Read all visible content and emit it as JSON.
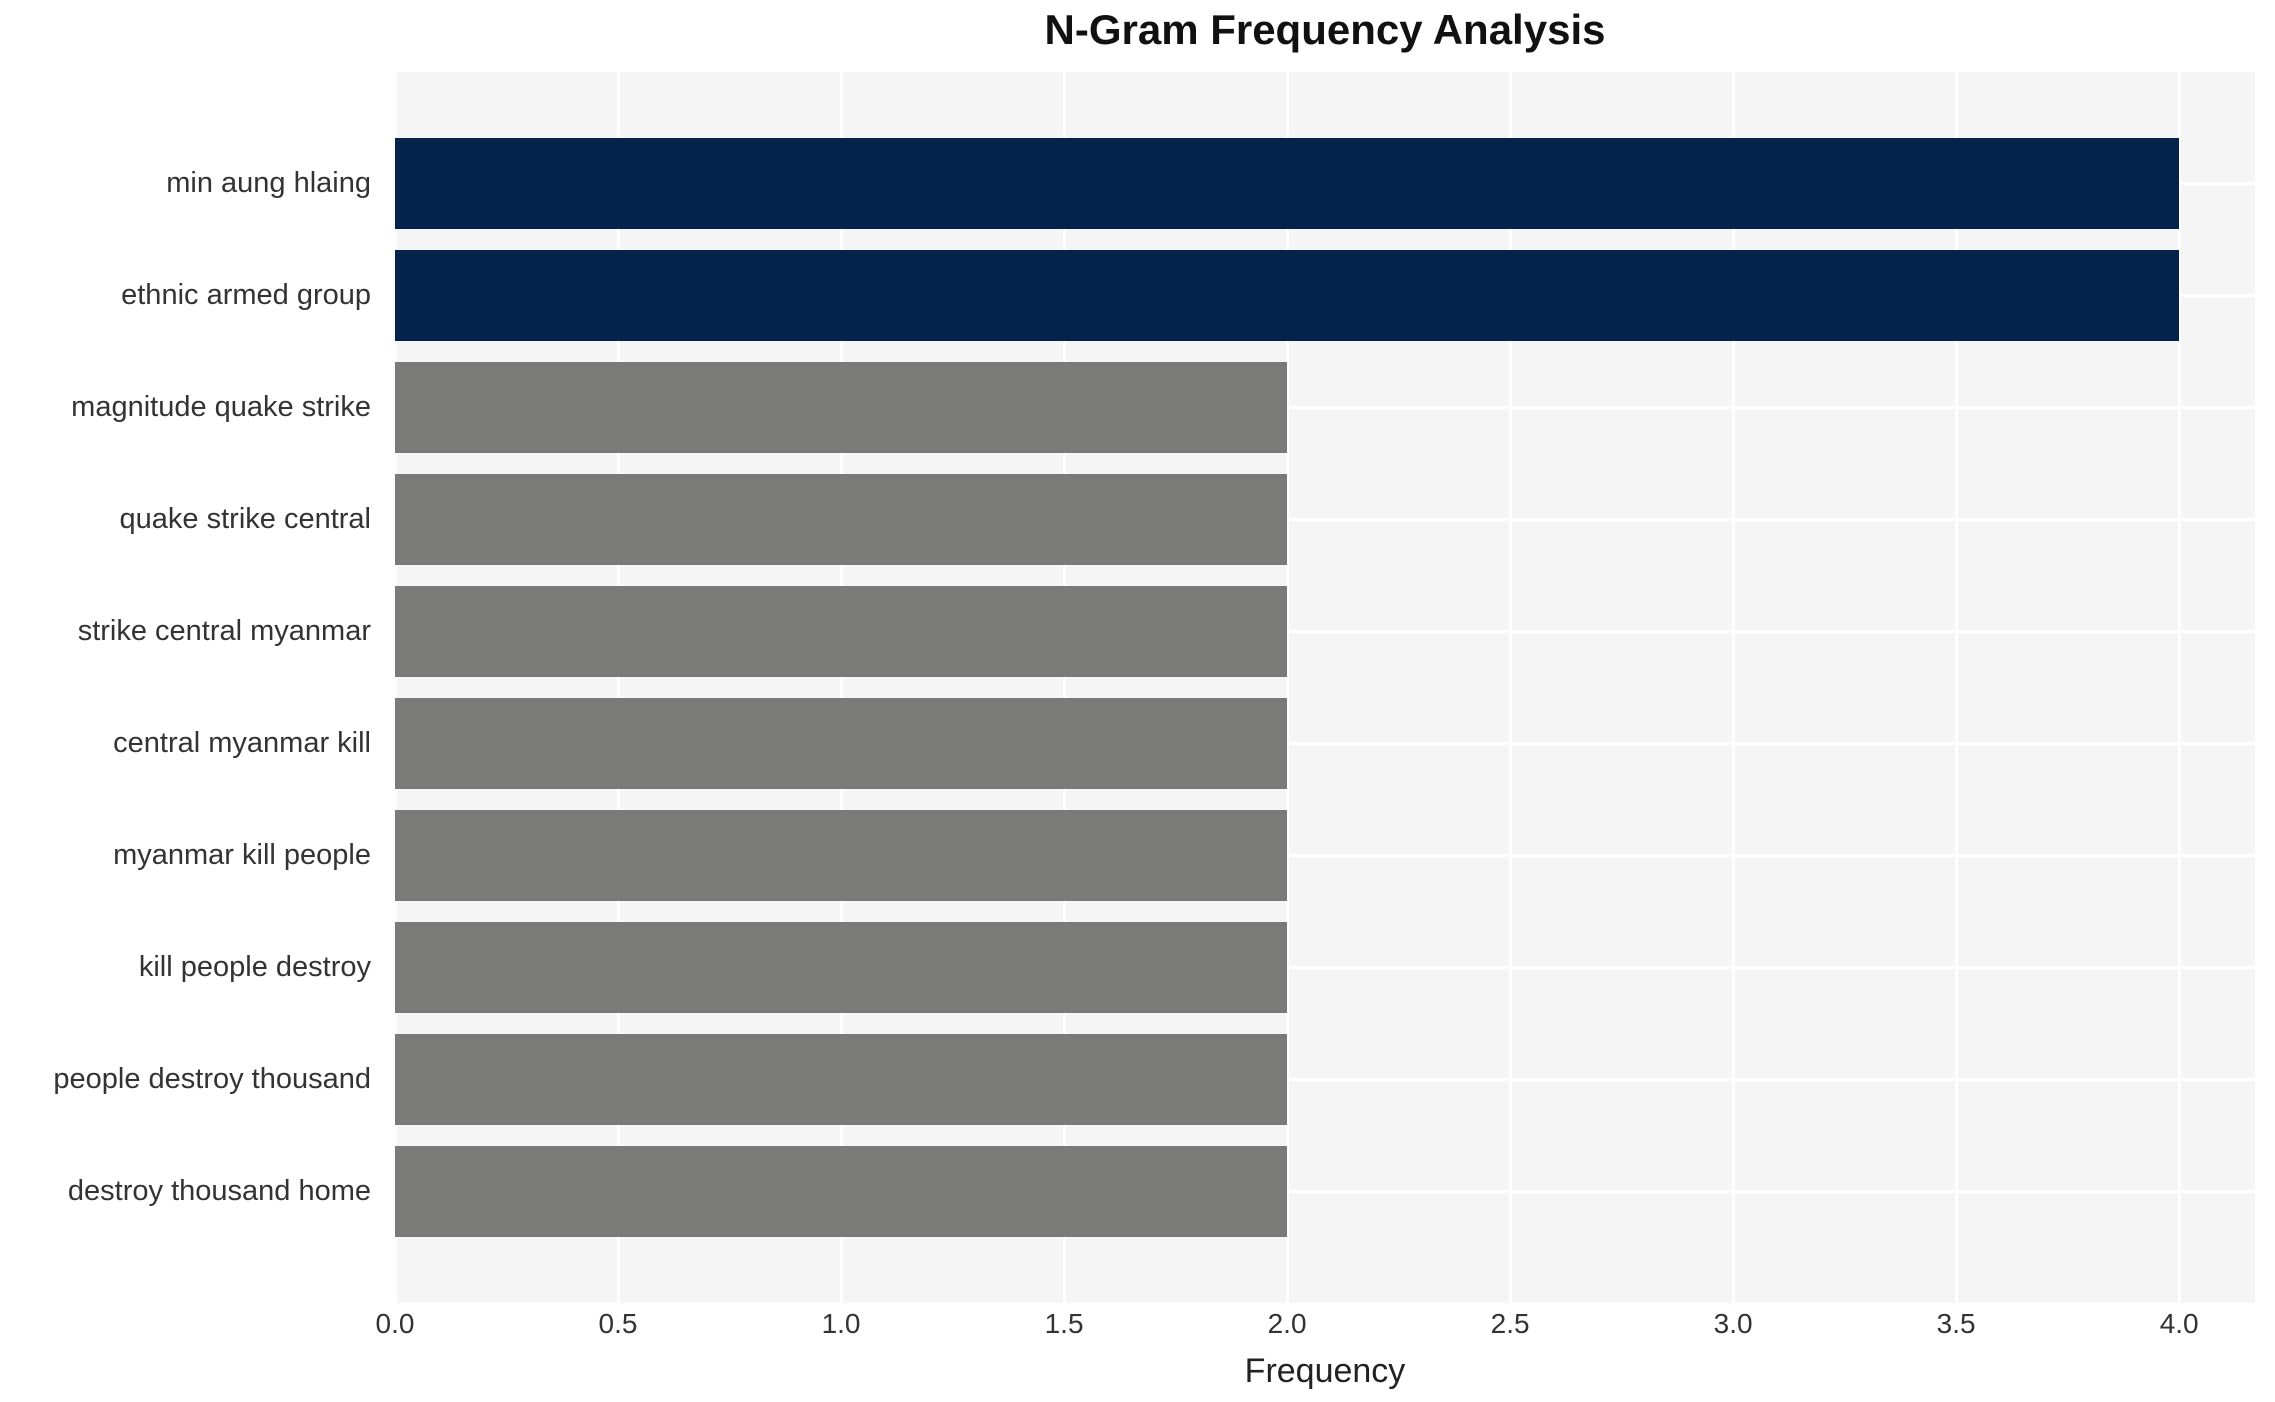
{
  "chart_data": {
    "type": "bar",
    "orientation": "horizontal",
    "title": "N-Gram Frequency Analysis",
    "xlabel": "Frequency",
    "ylabel": "",
    "categories": [
      "min aung hlaing",
      "ethnic armed group",
      "magnitude quake strike",
      "quake strike central",
      "strike central myanmar",
      "central myanmar kill",
      "myanmar kill people",
      "kill people destroy",
      "people destroy thousand",
      "destroy thousand home"
    ],
    "values": [
      4,
      4,
      2,
      2,
      2,
      2,
      2,
      2,
      2,
      2
    ],
    "bar_colors": [
      "#03234d",
      "#03234d",
      "#7a7a78",
      "#7a7a78",
      "#7a7a78",
      "#7a7a78",
      "#7a7a78",
      "#7a7a78",
      "#7a7a78",
      "#7a7a78"
    ],
    "x_ticks": [
      "0.0",
      "0.5",
      "1.0",
      "1.5",
      "2.0",
      "2.5",
      "3.0",
      "3.5",
      "4.0"
    ],
    "xlim": [
      0,
      4.17
    ],
    "grid": "white gridlines on light gray panel, vertical at x ticks and horizontal at bar centers",
    "legend": "none",
    "theme": {
      "panel_bg": "#f5f5f6",
      "grid_color": "#ffffff",
      "text_color": "#333333",
      "title_color": "#111111",
      "highlight_bar_color": "#03234d",
      "default_bar_color": "#7a7a78"
    }
  }
}
